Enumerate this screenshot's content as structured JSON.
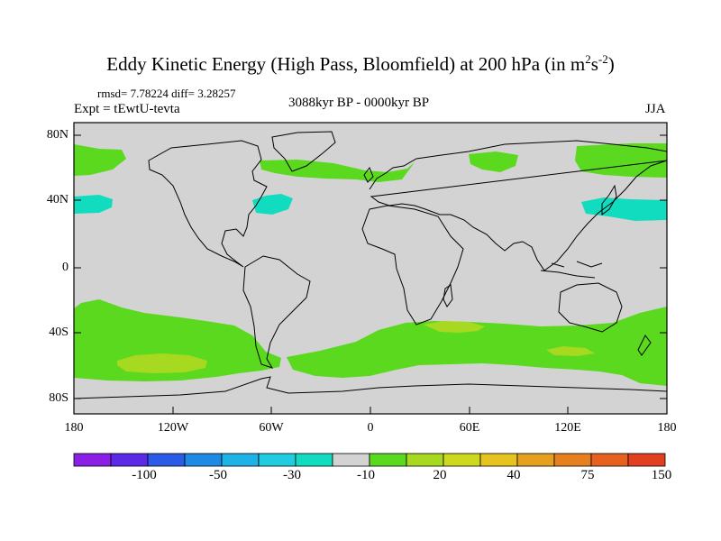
{
  "title": {
    "main": "Eddy Kinetic Energy (High Pass, Bloomfield) at 200 hPa (in m",
    "sup1": "2",
    "mid": "s",
    "sup2": "-2",
    "end": ")"
  },
  "stats": "rmsd= 7.78224 diff= 3.28257",
  "expt": "Expt = tEwtU-tevta",
  "period": "3088kyr BP - 0000kyr BP",
  "season": "JJA",
  "map": {
    "lat_labels": [
      "80N",
      "40N",
      "0",
      "40S",
      "80S"
    ],
    "lon_labels": [
      "180",
      "120W",
      "60W",
      "0",
      "60E",
      "120E",
      "180"
    ],
    "colors": {
      "background": "#d3d3d3",
      "positive_low": "#5ad91f",
      "positive_mid": "#a6d91f",
      "negative_low": "#12dcc0",
      "coast": "#000000"
    }
  },
  "colorbar": {
    "colors": [
      "#8a1fe6",
      "#5a2ae6",
      "#2a5ae6",
      "#1f8ae6",
      "#1fb2e6",
      "#1fcce0",
      "#12dcc0",
      "#d3d3d3",
      "#5ad91f",
      "#a6d91f",
      "#ccd91f",
      "#e6c31f",
      "#e6a01f",
      "#e6801f",
      "#e6601f",
      "#e0401f"
    ],
    "labels": [
      "-100",
      "-50",
      "-30",
      "-10",
      "20",
      "40",
      "75",
      "150"
    ]
  }
}
